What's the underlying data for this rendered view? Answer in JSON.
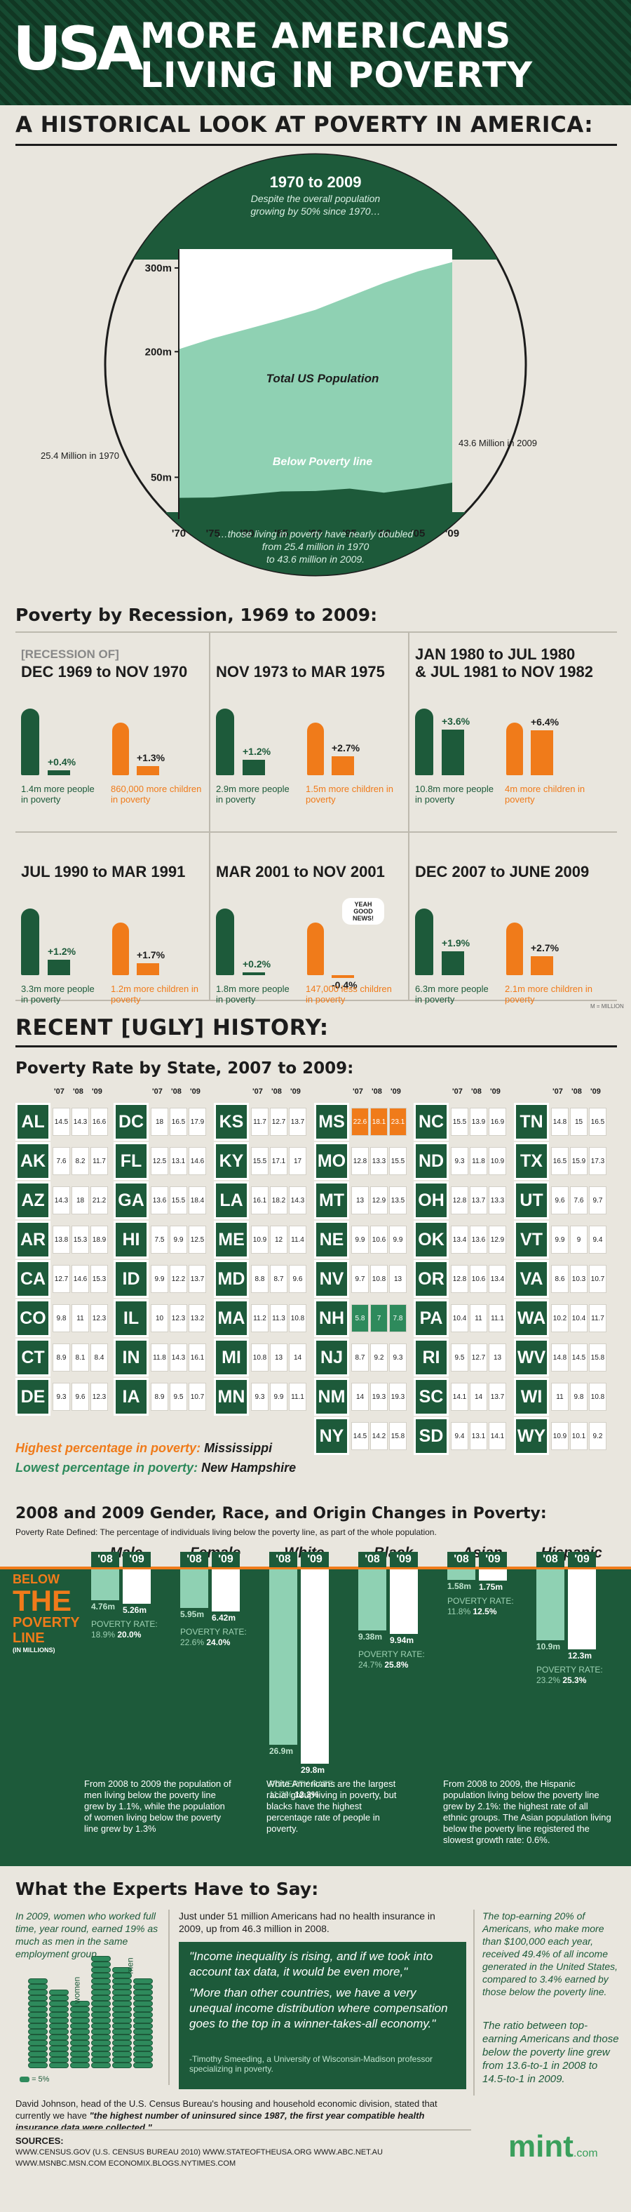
{
  "header": {
    "logo": "USA",
    "title_line1": "MORE AMERICANS",
    "title_line2": "LIVING IN POVERTY"
  },
  "historical": {
    "title": "A HISTORICAL LOOK AT POVERTY IN AMERICA:",
    "period": "1970 to 2009",
    "subtitle1": "Despite the overall population",
    "subtitle2": "growing by 50% since 1970…",
    "footnote1": "…those living in poverty have nearly doubled",
    "footnote2": "from 25.4 million in 1970",
    "footnote3": "to 43.6 million in 2009.",
    "label_total": "Total US Population",
    "label_poverty": "Below Poverty line",
    "label_1970": "25.4 Million in 1970",
    "label_2009": "43.6 Million in 2009"
  },
  "chart_data": {
    "type": "area",
    "x": [
      "'70",
      "'75",
      "'80",
      "'85",
      "'90",
      "'95",
      "'00",
      "'05",
      "'09"
    ],
    "y_ticks": [
      "300m",
      "200m",
      "50m"
    ],
    "series": [
      {
        "name": "Total US Population",
        "values": [
          203,
          216,
          227,
          238,
          250,
          266,
          282,
          296,
          307
        ]
      },
      {
        "name": "Below Poverty line",
        "values": [
          25.4,
          25.9,
          29.3,
          33.1,
          33.6,
          36.4,
          31.6,
          37.0,
          43.6
        ]
      }
    ]
  },
  "recession": {
    "title": "Poverty by Recession, 1969 to 2009:",
    "note": "M = MILLION",
    "items": [
      {
        "t1": "[RECESSION OF]",
        "t2": "DEC 1969 to NOV 1970",
        "men": "+0.4%",
        "kids": "+1.3%",
        "men_cap": "1.4m more people in poverty",
        "kids_cap": "860,000 more children in poverty"
      },
      {
        "t1": "",
        "t2": "NOV 1973 to MAR 1975",
        "men": "+1.2%",
        "kids": "+2.7%",
        "men_cap": "2.9m more people in poverty",
        "kids_cap": "1.5m more children in poverty"
      },
      {
        "t1": "JAN 1980 to JUL 1980",
        "t2": "& JUL 1981 to NOV 1982",
        "men": "+3.6%",
        "kids": "+6.4%",
        "men_cap": "10.8m more people in poverty",
        "kids_cap": "4m more children in poverty"
      },
      {
        "t1": "",
        "t2": "JUL 1990 to MAR 1991",
        "men": "+1.2%",
        "kids": "+1.7%",
        "men_cap": "3.3m more people in poverty",
        "kids_cap": "1.2m more children in poverty"
      },
      {
        "t1": "",
        "t2": "MAR 2001 to NOV 2001",
        "men": "+0.2%",
        "kids": "-0.4%",
        "men_cap": "1.8m more people in poverty",
        "kids_cap": "147,000 less children in poverty",
        "bubble": "YEAH GOOD NEWS!"
      },
      {
        "t1": "",
        "t2": "DEC 2007 to JUNE 2009",
        "men": "+1.9%",
        "kids": "+2.7%",
        "men_cap": "6.3m more people in poverty",
        "kids_cap": "2.1m more children in poverty"
      }
    ]
  },
  "recent": {
    "title": "RECENT [UGLY] HISTORY:",
    "state_title": "Poverty Rate by State, 2007 to 2009:",
    "years": [
      "'07",
      "'08",
      "'09"
    ],
    "highest_label": "Highest percentage in poverty:",
    "highest_val": "Mississippi",
    "lowest_label": "Lowest percentage in poverty:",
    "lowest_val": "New Hampshire",
    "states": [
      [
        "AL",
        "14.5",
        "14.3",
        "16.6"
      ],
      [
        "DC",
        "18",
        "16.5",
        "17.9"
      ],
      [
        "KS",
        "11.7",
        "12.7",
        "13.7"
      ],
      [
        "MS",
        "22.6",
        "18.1",
        "23.1"
      ],
      [
        "NC",
        "15.5",
        "13.9",
        "16.9"
      ],
      [
        "TN",
        "14.8",
        "15",
        "16.5"
      ],
      [
        "AK",
        "7.6",
        "8.2",
        "11.7"
      ],
      [
        "FL",
        "12.5",
        "13.1",
        "14.6"
      ],
      [
        "KY",
        "15.5",
        "17.1",
        "17"
      ],
      [
        "MO",
        "12.8",
        "13.3",
        "15.5"
      ],
      [
        "ND",
        "9.3",
        "11.8",
        "10.9"
      ],
      [
        "TX",
        "16.5",
        "15.9",
        "17.3"
      ],
      [
        "AZ",
        "14.3",
        "18",
        "21.2"
      ],
      [
        "GA",
        "13.6",
        "15.5",
        "18.4"
      ],
      [
        "LA",
        "16.1",
        "18.2",
        "14.3"
      ],
      [
        "MT",
        "13",
        "12.9",
        "13.5"
      ],
      [
        "OH",
        "12.8",
        "13.7",
        "13.3"
      ],
      [
        "UT",
        "9.6",
        "7.6",
        "9.7"
      ],
      [
        "AR",
        "13.8",
        "15.3",
        "18.9"
      ],
      [
        "HI",
        "7.5",
        "9.9",
        "12.5"
      ],
      [
        "ME",
        "10.9",
        "12",
        "11.4"
      ],
      [
        "NE",
        "9.9",
        "10.6",
        "9.9"
      ],
      [
        "OK",
        "13.4",
        "13.6",
        "12.9"
      ],
      [
        "VT",
        "9.9",
        "9",
        "9.4"
      ],
      [
        "CA",
        "12.7",
        "14.6",
        "15.3"
      ],
      [
        "ID",
        "9.9",
        "12.2",
        "13.7"
      ],
      [
        "MD",
        "8.8",
        "8.7",
        "9.6"
      ],
      [
        "NV",
        "9.7",
        "10.8",
        "13"
      ],
      [
        "OR",
        "12.8",
        "10.6",
        "13.4"
      ],
      [
        "VA",
        "8.6",
        "10.3",
        "10.7"
      ],
      [
        "CO",
        "9.8",
        "11",
        "12.3"
      ],
      [
        "IL",
        "10",
        "12.3",
        "13.2"
      ],
      [
        "MA",
        "11.2",
        "11.3",
        "10.8"
      ],
      [
        "NH",
        "5.8",
        "7",
        "7.8"
      ],
      [
        "PA",
        "10.4",
        "11",
        "11.1"
      ],
      [
        "WA",
        "10.2",
        "10.4",
        "11.7"
      ],
      [
        "CT",
        "8.9",
        "8.1",
        "8.4"
      ],
      [
        "IN",
        "11.8",
        "14.3",
        "16.1"
      ],
      [
        "MI",
        "10.8",
        "13",
        "14"
      ],
      [
        "NJ",
        "8.7",
        "9.2",
        "9.3"
      ],
      [
        "RI",
        "9.5",
        "12.7",
        "13"
      ],
      [
        "WV",
        "14.8",
        "14.5",
        "15.8"
      ],
      [
        "DE",
        "9.3",
        "9.6",
        "12.3"
      ],
      [
        "IA",
        "8.9",
        "9.5",
        "10.7"
      ],
      [
        "MN",
        "9.3",
        "9.9",
        "11.1"
      ],
      [
        "NM",
        "14",
        "19.3",
        "19.3"
      ],
      [
        "SC",
        "14.1",
        "14",
        "13.7"
      ],
      [
        "WI",
        "11",
        "9.8",
        "10.8"
      ],
      [
        "",
        "",
        "",
        ""
      ],
      [
        "",
        "",
        "",
        ""
      ],
      [
        "",
        "",
        "",
        ""
      ],
      [
        "NY",
        "14.5",
        "14.2",
        "15.8"
      ],
      [
        "SD",
        "9.4",
        "13.1",
        "14.1"
      ],
      [
        "WY",
        "10.9",
        "10.1",
        "9.2"
      ]
    ]
  },
  "gender": {
    "title": "2008 and 2009 Gender, Race, and Origin Changes in Poverty:",
    "def": "Poverty Rate Defined: The percentage of individuals living below the poverty line, as part of the whole population.",
    "below": "BELOW",
    "the": "THE",
    "poverty": "POVERTY",
    "line": "LINE",
    "unit": "(IN MILLIONS)",
    "rate_label": "POVERTY RATE:",
    "cols": [
      {
        "name": "Male",
        "y08": "4.76m",
        "y09": "5.26m",
        "r08": "18.9%",
        "r09": "20.0%"
      },
      {
        "name": "Female",
        "y08": "5.95m",
        "y09": "6.42m",
        "r08": "22.6%",
        "r09": "24.0%"
      },
      {
        "name": "White",
        "y08": "26.9m",
        "y09": "29.8m",
        "r08": "11.2%",
        "r09": "12.3%"
      },
      {
        "name": "Black",
        "y08": "9.38m",
        "y09": "9.94m",
        "r08": "24.7%",
        "r09": "25.8%"
      },
      {
        "name": "Asian",
        "y08": "1.58m",
        "y09": "1.75m",
        "r08": "11.8%",
        "r09": "12.5%"
      },
      {
        "name": "Hispanic",
        "y08": "10.9m",
        "y09": "12.3m",
        "r08": "23.2%",
        "r09": "25.3%"
      }
    ],
    "note1": "From 2008 to 2009 the population of men living below the poverty line grew by 1.1%, while the population of women living below the poverty line grew by 1.3%",
    "note2": "White Americans are the largest racial group living in poverty, but blacks have the highest percentage rate of people in poverty.",
    "note3": "From 2008 to 2009, the Hispanic population living below the poverty line grew by 2.1%: the highest rate of all ethnic groups. The Asian population living below the poverty line registered the slowest growth rate: 0.6%.",
    "y08": "'08",
    "y09": "'09"
  },
  "experts": {
    "title": "What the Experts Have to Say:",
    "left": "In 2009, women who worked full time, year round, earned 19% as much as men in the same employment group.",
    "women": "women",
    "men": "men",
    "legend": "= 5%",
    "uninsured": "Just under 51 million Americans had no health insurance in 2009, up from 46.3 million in 2008.",
    "q1": "\"Income inequality is rising, and if we took into account tax data, it would be even more,\"",
    "q2": "\"More than other countries, we have a very unequal income distribution where compensation goes to the top in a winner-takes-all economy.\"",
    "q_attr": "-Timothy Smeeding, a University of Wisconsin-Madison professor specializing in poverty.",
    "right1": "The top-earning 20% of Americans, who make more than $100,000 each year, received 49.4% of all income generated in the United States, compared to 3.4% earned by those below the poverty line.",
    "right2": "The ratio between top-earning Americans and those below the poverty line grew from 13.6-to-1 in 2008 to 14.5-to-1 in 2009.",
    "johnson1": "David Johnson, head of the U.S. Census Bureau's housing and household economic division, stated that currently we have",
    "johnson2": "\"the highest number of uninsured since 1987, the first year compatible health insurance data were collected.\""
  },
  "sources": {
    "label": "SOURCES:",
    "line1": "WWW.CENSUS.GOV (U.S. CENSUS BUREAU 2010)   WWW.STATEOFTHEUSA.ORG   WWW.ABC.NET.AU",
    "line2": "WWW.MSNBC.MSN.COM   ECONOMIX.BLOGS.NYTIMES.COM",
    "brand": "mint",
    "brand_suffix": ".com"
  },
  "colors": {
    "green": "#1d5a3a",
    "orange": "#f07b1a",
    "header": "#123b27"
  }
}
